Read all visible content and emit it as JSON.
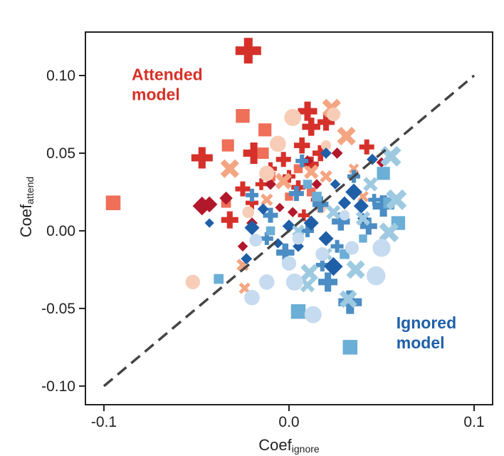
{
  "chart_data": {
    "type": "scatter",
    "title": "",
    "xlabel_main": "Coef",
    "xlabel_sub": "ignore",
    "ylabel_main": "Coef",
    "ylabel_sub": "attend",
    "xlim": [
      -0.11,
      0.11
    ],
    "ylim": [
      -0.112,
      0.128
    ],
    "x_ticks": [
      -0.1,
      0.0,
      0.1
    ],
    "x_tick_labels": [
      "-0.1",
      "0.0",
      "0.1"
    ],
    "y_ticks": [
      0.1,
      0.05,
      0.0,
      -0.05,
      -0.1
    ],
    "y_tick_labels": [
      "0.10",
      "0.05",
      "0.00",
      "-0.05",
      "-0.10"
    ],
    "annotations": [
      {
        "text_lines": [
          "Attended",
          "model"
        ],
        "color": "#d63027",
        "x": -0.085,
        "y": 0.097
      },
      {
        "text_lines": [
          "Ignored",
          "model"
        ],
        "color": "#1f5fa8",
        "x": 0.058,
        "y": -0.063
      }
    ],
    "reference_line": {
      "x1": -0.1,
      "y1": -0.1,
      "x2": 0.1,
      "y2": 0.1,
      "style": "dashed",
      "color": "#444444"
    },
    "colors": {
      "dark_red": "#b2182b",
      "red": "#d6302a",
      "salmon": "#ef6f58",
      "light_salmon": "#f4a582",
      "pale_peach": "#f8cdb8",
      "dark_blue": "#1f5fa8",
      "blue": "#4b8dc4",
      "light_blue": "#6baed6",
      "pale_blue": "#c6dbef"
    },
    "series": [
      {
        "name": "attended-plus",
        "marker": "plus",
        "color": "#d6302a",
        "points": [
          [
            -0.022,
            0.116,
            1.2
          ],
          [
            -0.047,
            0.047,
            1.0
          ],
          [
            -0.019,
            0.05,
            1.0
          ],
          [
            0.01,
            0.077,
            0.9
          ],
          [
            0.012,
            0.067,
            0.85
          ],
          [
            0.02,
            0.07,
            0.8
          ],
          [
            0.007,
            0.055,
            0.75
          ],
          [
            0.017,
            0.05,
            0.75
          ],
          [
            0.042,
            0.054,
            0.7
          ],
          [
            -0.003,
            0.046,
            0.7
          ],
          [
            0.012,
            0.043,
            0.7
          ],
          [
            -0.032,
            0.007,
            0.8
          ],
          [
            -0.025,
            0.027,
            0.7
          ],
          [
            0.0,
            0.035,
            0.6
          ],
          [
            -0.01,
            0.04,
            0.6
          ],
          [
            0.005,
            0.028,
            0.65
          ],
          [
            -0.02,
            0.018,
            0.6
          ],
          [
            0.015,
            0.02,
            0.55
          ],
          [
            -0.015,
            0.03,
            0.55
          ],
          [
            0.008,
            0.01,
            0.55
          ]
        ]
      },
      {
        "name": "attended-square",
        "marker": "square",
        "color": "#ef6f58",
        "points": [
          [
            -0.095,
            0.018,
            0.9
          ],
          [
            -0.025,
            0.074,
            0.85
          ],
          [
            -0.013,
            0.065,
            0.8
          ],
          [
            -0.033,
            0.055,
            0.75
          ],
          [
            -0.014,
            0.05,
            0.7
          ],
          [
            -0.01,
            0.035,
            0.6
          ],
          [
            0.005,
            0.04,
            0.55
          ],
          [
            0.012,
            0.025,
            0.55
          ],
          [
            -0.034,
            0.018,
            0.6
          ],
          [
            0.0,
            0.022,
            0.5
          ]
        ]
      },
      {
        "name": "attended-x",
        "marker": "x",
        "color": "#f4a582",
        "points": [
          [
            0.023,
            0.079,
            0.9
          ],
          [
            0.031,
            0.061,
            0.9
          ],
          [
            -0.032,
            0.04,
            0.9
          ],
          [
            -0.003,
            0.032,
            0.8
          ],
          [
            0.012,
            0.038,
            0.7
          ],
          [
            -0.025,
            -0.022,
            0.6
          ],
          [
            -0.024,
            -0.037,
            0.55
          ],
          [
            0.02,
            0.035,
            0.6
          ],
          [
            -0.012,
            0.02,
            0.6
          ],
          [
            0.04,
            0.022,
            0.55
          ],
          [
            0.035,
            0.04,
            0.5
          ]
        ]
      },
      {
        "name": "attended-diamond",
        "marker": "diamond",
        "color": "#b2182b",
        "points": [
          [
            -0.047,
            0.016,
            1.0
          ],
          [
            -0.043,
            0.017,
            0.85
          ],
          [
            -0.034,
            0.021,
            0.7
          ],
          [
            0.026,
            0.05,
            0.6
          ],
          [
            0.01,
            0.045,
            0.6
          ],
          [
            0.05,
            0.044,
            0.55
          ],
          [
            -0.01,
            0.03,
            0.6
          ],
          [
            0.002,
            0.012,
            0.55
          ],
          [
            -0.02,
            0.005,
            0.6
          ],
          [
            -0.025,
            -0.01,
            0.55
          ],
          [
            0.015,
            0.03,
            0.55
          ],
          [
            -0.005,
            0.015,
            0.5
          ]
        ]
      },
      {
        "name": "attended-circle",
        "marker": "circle",
        "color": "#f8cdb8",
        "points": [
          [
            0.002,
            0.073,
            1.0
          ],
          [
            -0.006,
            0.056,
            0.95
          ],
          [
            -0.012,
            0.037,
            0.9
          ],
          [
            -0.052,
            -0.033,
            0.85
          ],
          [
            0.024,
            0.075,
            0.8
          ],
          [
            -0.022,
            0.012,
            0.7
          ],
          [
            0.017,
            0.015,
            0.7
          ],
          [
            0.02,
            0.055,
            0.6
          ]
        ]
      },
      {
        "name": "ignored-plus",
        "marker": "plus",
        "color": "#4b8dc4",
        "points": [
          [
            0.033,
            -0.046,
            1.1
          ],
          [
            0.051,
            0.016,
            1.0
          ],
          [
            0.021,
            -0.033,
            0.9
          ],
          [
            0.028,
            0.006,
            0.85
          ],
          [
            -0.002,
            -0.014,
            0.85
          ],
          [
            0.043,
            0.003,
            0.8
          ],
          [
            0.017,
            0.017,
            0.75
          ],
          [
            0.004,
            0.024,
            0.7
          ],
          [
            -0.01,
            0.01,
            0.7
          ],
          [
            -0.02,
            0.023,
            0.6
          ],
          [
            0.035,
            0.035,
            0.6
          ],
          [
            0.01,
            0.0,
            0.6
          ],
          [
            0.007,
            0.045,
            0.6
          ],
          [
            0.026,
            -0.01,
            0.6
          ],
          [
            0.046,
            0.02,
            0.55
          ],
          [
            -0.012,
            -0.005,
            0.6
          ],
          [
            0.018,
            -0.022,
            0.6
          ]
        ]
      },
      {
        "name": "ignored-diamond",
        "marker": "diamond",
        "color": "#1f5fa8",
        "points": [
          [
            0.024,
            -0.023,
            1.0
          ],
          [
            0.035,
            0.025,
            0.9
          ],
          [
            0.039,
            0.016,
            0.8
          ],
          [
            0.045,
            0.046,
            0.6
          ],
          [
            0.02,
            0.05,
            0.6
          ],
          [
            0.012,
            0.005,
            0.8
          ],
          [
            0.02,
            -0.005,
            0.8
          ],
          [
            -0.023,
            -0.018,
            0.6
          ],
          [
            -0.043,
            0.005,
            0.5
          ],
          [
            -0.02,
            0.002,
            0.8
          ],
          [
            0.0,
            0.003,
            0.7
          ],
          [
            0.03,
            0.018,
            0.7
          ],
          [
            0.005,
            -0.01,
            0.6
          ],
          [
            -0.014,
            0.014,
            0.6
          ],
          [
            0.025,
            0.03,
            0.55
          ],
          [
            0.04,
            0.008,
            0.6
          ],
          [
            -0.006,
            -0.008,
            0.55
          ]
        ]
      },
      {
        "name": "ignored-square",
        "marker": "square",
        "color": "#6baed6",
        "points": [
          [
            0.033,
            -0.075,
            0.9
          ],
          [
            0.005,
            -0.052,
            0.9
          ],
          [
            0.059,
            0.005,
            0.85
          ],
          [
            0.051,
            0.037,
            0.8
          ],
          [
            0.054,
            0.018,
            0.7
          ],
          [
            -0.038,
            -0.031,
            0.6
          ],
          [
            0.015,
            0.022,
            0.6
          ],
          [
            0.03,
            -0.015,
            0.6
          ],
          [
            -0.01,
            0.0,
            0.55
          ],
          [
            0.01,
            0.03,
            0.55
          ],
          [
            0.04,
            -0.005,
            0.5
          ]
        ]
      },
      {
        "name": "ignored-x",
        "marker": "x",
        "color": "#9ecae1",
        "points": [
          [
            0.055,
            0.048,
            1.0
          ],
          [
            0.058,
            0.02,
            1.0
          ],
          [
            0.054,
            -0.001,
            0.95
          ],
          [
            0.036,
            -0.025,
            0.9
          ],
          [
            0.032,
            -0.044,
            0.85
          ],
          [
            0.011,
            -0.027,
            0.85
          ],
          [
            0.044,
            0.03,
            0.7
          ],
          [
            0.04,
            0.008,
            0.7
          ],
          [
            0.024,
            0.012,
            0.7
          ],
          [
            0.01,
            -0.035,
            0.7
          ],
          [
            0.005,
            0.0,
            0.6
          ],
          [
            0.02,
            -0.015,
            0.6
          ]
        ]
      },
      {
        "name": "ignored-circle",
        "marker": "circle",
        "color": "#c6dbef",
        "points": [
          [
            0.047,
            -0.029,
            1.1
          ],
          [
            0.05,
            -0.011,
            1.05
          ],
          [
            0.013,
            -0.054,
            1.0
          ],
          [
            0.003,
            -0.033,
            1.0
          ],
          [
            -0.012,
            -0.033,
            0.9
          ],
          [
            -0.02,
            -0.043,
            0.9
          ],
          [
            0.034,
            -0.011,
            0.8
          ],
          [
            0.0,
            -0.021,
            0.85
          ],
          [
            0.018,
            -0.015,
            0.8
          ],
          [
            -0.018,
            -0.006,
            0.75
          ],
          [
            0.005,
            -0.005,
            0.7
          ],
          [
            0.03,
            0.01,
            0.6
          ]
        ]
      }
    ]
  }
}
